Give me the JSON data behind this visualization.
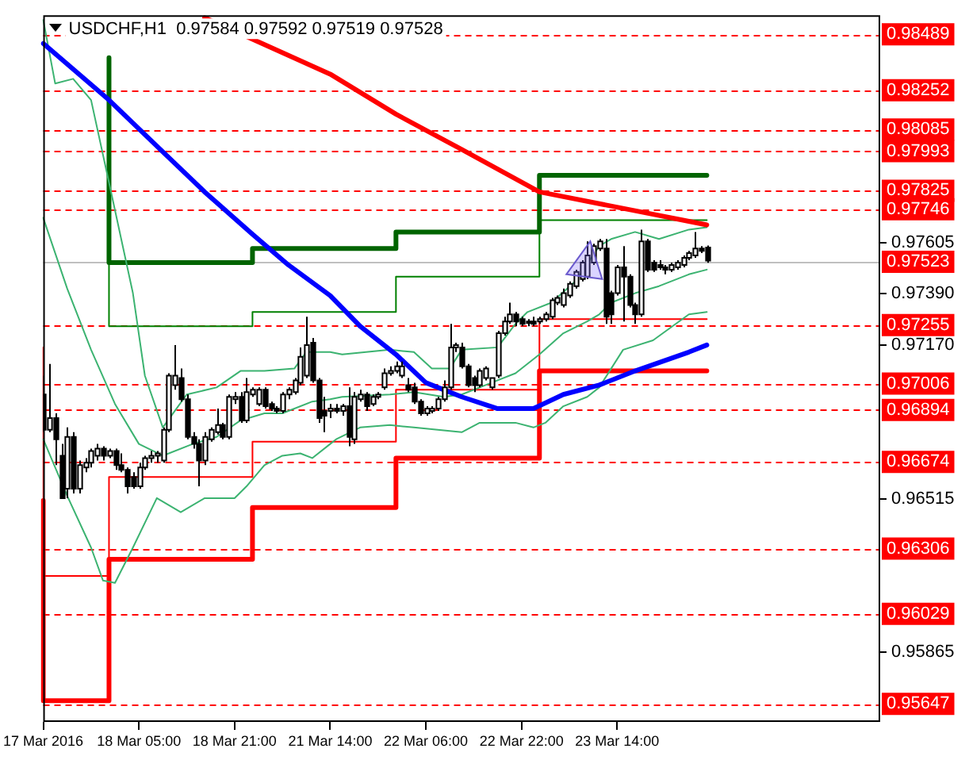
{
  "chart_data": {
    "type": "candlestick",
    "title": "USDCHF,H1  0.97584 0.97592 0.97519 0.97528",
    "categories": [
      "17 Mar 2016",
      null,
      null,
      null,
      null,
      null,
      null,
      null,
      null,
      null,
      null,
      null,
      null,
      null,
      null,
      null,
      "18 Mar 05:00",
      null,
      null,
      null,
      null,
      null,
      null,
      null,
      null,
      null,
      null,
      null,
      null,
      null,
      null,
      null,
      "18 Mar 21:00",
      null,
      null,
      null,
      null,
      null,
      null,
      null,
      null,
      null,
      null,
      null,
      null,
      null,
      null,
      null,
      "21 Mar 14:00",
      null,
      null,
      null,
      null,
      null,
      null,
      null,
      null,
      null,
      null,
      null,
      null,
      null,
      null,
      null,
      "22 Mar 06:00",
      null,
      null,
      null,
      null,
      null,
      null,
      null,
      null,
      null,
      null,
      null,
      null,
      null,
      null,
      null,
      "22 Mar 22:00",
      null,
      null,
      null,
      null,
      null,
      null,
      null,
      null,
      null,
      null,
      null,
      null,
      null,
      null,
      null,
      "23 Mar 14:00",
      null,
      null,
      null,
      null,
      null,
      null,
      null,
      null,
      null,
      null,
      null,
      null,
      null,
      null,
      null,
      null,
      null,
      null,
      null,
      null,
      null,
      null,
      null,
      null,
      null,
      null,
      null,
      null,
      null,
      null,
      null,
      null,
      null,
      null,
      null,
      null,
      null,
      null,
      null,
      null,
      null,
      null,
      null,
      null
    ],
    "ohlc": [
      [
        0.9696,
        0.9704,
        0.968,
        0.9681
      ],
      [
        0.9681,
        0.9709,
        0.968,
        0.9686
      ],
      [
        0.9686,
        0.9688,
        0.9666,
        0.9677
      ],
      [
        0.967,
        0.9675,
        0.9652,
        0.9652
      ],
      [
        0.9656,
        0.9682,
        0.9652,
        0.9678
      ],
      [
        0.9678,
        0.968,
        0.9654,
        0.9656
      ],
      [
        0.9656,
        0.9668,
        0.9654,
        0.9666
      ],
      [
        0.9665,
        0.9669,
        0.9663,
        0.9667
      ],
      [
        0.9667,
        0.9673,
        0.9665,
        0.9672
      ],
      [
        0.967,
        0.9675,
        0.9668,
        0.9673
      ],
      [
        0.9673,
        0.9674,
        0.9668,
        0.967
      ],
      [
        0.967,
        0.9673,
        0.9669,
        0.9672
      ],
      [
        0.9672,
        0.9673,
        0.9664,
        0.9666
      ],
      [
        0.9666,
        0.9671,
        0.9663,
        0.9664
      ],
      [
        0.9664,
        0.9665,
        0.9654,
        0.9657
      ],
      [
        0.9661,
        0.9663,
        0.9656,
        0.9657
      ],
      [
        0.9657,
        0.9667,
        0.9656,
        0.9665
      ],
      [
        0.9665,
        0.967,
        0.9664,
        0.9669
      ],
      [
        0.9669,
        0.9672,
        0.9667,
        0.967
      ],
      [
        0.967,
        0.9672,
        0.9667,
        0.9671
      ],
      [
        0.9668,
        0.9682,
        0.9667,
        0.9681
      ],
      [
        0.9681,
        0.9705,
        0.968,
        0.9704
      ],
      [
        0.97,
        0.9717,
        0.9698,
        0.9704
      ],
      [
        0.9703,
        0.9707,
        0.9693,
        0.9694
      ],
      [
        0.9694,
        0.9696,
        0.9677,
        0.9678
      ],
      [
        0.9678,
        0.968,
        0.9673,
        0.9675
      ],
      [
        0.9675,
        0.9677,
        0.9657,
        0.9668
      ],
      [
        0.9668,
        0.968,
        0.9666,
        0.9678
      ],
      [
        0.9677,
        0.9682,
        0.9676,
        0.9681
      ],
      [
        0.968,
        0.969,
        0.9679,
        0.9683
      ],
      [
        0.9683,
        0.9684,
        0.9677,
        0.9678
      ],
      [
        0.9678,
        0.9696,
        0.9677,
        0.9695
      ],
      [
        0.9694,
        0.9697,
        0.9692,
        0.9695
      ],
      [
        0.9695,
        0.9697,
        0.9684,
        0.9685
      ],
      [
        0.9685,
        0.9703,
        0.9684,
        0.9697
      ],
      [
        0.9696,
        0.9699,
        0.9695,
        0.9698
      ],
      [
        0.9692,
        0.9699,
        0.9691,
        0.9698
      ],
      [
        0.9698,
        0.9699,
        0.969,
        0.9691
      ],
      [
        0.9692,
        0.9693,
        0.9689,
        0.969
      ],
      [
        0.969,
        0.9691,
        0.9688,
        0.9689
      ],
      [
        0.9689,
        0.9697,
        0.9688,
        0.9696
      ],
      [
        0.9696,
        0.9699,
        0.9694,
        0.9698
      ],
      [
        0.9697,
        0.9703,
        0.9696,
        0.9702
      ],
      [
        0.9701,
        0.9716,
        0.97,
        0.9712
      ],
      [
        0.9704,
        0.9729,
        0.9703,
        0.9717
      ],
      [
        0.9718,
        0.972,
        0.9701,
        0.9702
      ],
      [
        0.9702,
        0.9703,
        0.9684,
        0.9686
      ],
      [
        0.9689,
        0.9695,
        0.968,
        0.9687
      ],
      [
        0.9689,
        0.9692,
        0.9686,
        0.969
      ],
      [
        0.969,
        0.9692,
        0.9688,
        0.9689
      ],
      [
        0.9689,
        0.9692,
        0.9687,
        0.9691
      ],
      [
        0.9691,
        0.9699,
        0.9674,
        0.9678
      ],
      [
        0.9677,
        0.9697,
        0.9675,
        0.9695
      ],
      [
        0.9694,
        0.9698,
        0.9693,
        0.9696
      ],
      [
        0.9696,
        0.9697,
        0.9689,
        0.9691
      ],
      [
        0.9692,
        0.9696,
        0.9691,
        0.9695
      ],
      [
        0.9695,
        0.9697,
        0.9694,
        0.9696
      ],
      [
        0.9699,
        0.9707,
        0.9698,
        0.9705
      ],
      [
        0.9705,
        0.9708,
        0.9704,
        0.9706
      ],
      [
        0.9706,
        0.971,
        0.9705,
        0.9708
      ],
      [
        0.9704,
        0.971,
        0.9703,
        0.9708
      ],
      [
        0.97,
        0.9703,
        0.9697,
        0.9698
      ],
      [
        0.9699,
        0.9701,
        0.9692,
        0.9693
      ],
      [
        0.9693,
        0.9694,
        0.9687,
        0.9688
      ],
      [
        0.9688,
        0.9691,
        0.9687,
        0.969
      ],
      [
        0.9689,
        0.9691,
        0.9688,
        0.969
      ],
      [
        0.969,
        0.9695,
        0.9689,
        0.9694
      ],
      [
        0.9694,
        0.9702,
        0.9693,
        0.9699
      ],
      [
        0.9699,
        0.9726,
        0.9698,
        0.9716
      ],
      [
        0.9716,
        0.9718,
        0.9714,
        0.9717
      ],
      [
        0.9716,
        0.9718,
        0.9707,
        0.9708
      ],
      [
        0.9708,
        0.9709,
        0.9699,
        0.97
      ],
      [
        0.9703,
        0.9704,
        0.9697,
        0.97
      ],
      [
        0.97,
        0.9707,
        0.9699,
        0.9706
      ],
      [
        0.9703,
        0.9708,
        0.9702,
        0.9707
      ],
      [
        0.9699,
        0.9703,
        0.9698,
        0.9703
      ],
      [
        0.9704,
        0.9723,
        0.9703,
        0.9722
      ],
      [
        0.9722,
        0.9729,
        0.9721,
        0.9727
      ],
      [
        0.9727,
        0.9735,
        0.9726,
        0.973
      ],
      [
        0.973,
        0.9731,
        0.9725,
        0.9727
      ],
      [
        0.9728,
        0.9729,
        0.9725,
        0.9726
      ],
      [
        0.9727,
        0.9728,
        0.9725,
        0.9727
      ],
      [
        0.9727,
        0.9729,
        0.9725,
        0.9726
      ],
      [
        0.9727,
        0.9729,
        0.9726,
        0.9728
      ],
      [
        0.9728,
        0.9731,
        0.9727,
        0.973
      ],
      [
        0.9729,
        0.9737,
        0.9728,
        0.9736
      ],
      [
        0.9735,
        0.9738,
        0.9734,
        0.9737
      ],
      [
        0.9734,
        0.9741,
        0.9733,
        0.9739
      ],
      [
        0.9738,
        0.9744,
        0.9737,
        0.9743
      ],
      [
        0.9742,
        0.9749,
        0.9741,
        0.9748
      ],
      [
        0.9745,
        0.9753,
        0.9744,
        0.9752
      ],
      [
        0.9746,
        0.9761,
        0.9745,
        0.9755
      ],
      [
        0.9752,
        0.976,
        0.9751,
        0.9759
      ],
      [
        0.9758,
        0.9762,
        0.9757,
        0.9761
      ],
      [
        0.9758,
        0.9762,
        0.9726,
        0.9729
      ],
      [
        0.9739,
        0.974,
        0.9726,
        0.973
      ],
      [
        0.9739,
        0.9751,
        0.9738,
        0.975
      ],
      [
        0.975,
        0.9759,
        0.9727,
        0.9746
      ],
      [
        0.9746,
        0.9747,
        0.9733,
        0.9734
      ],
      [
        0.9734,
        0.9735,
        0.9726,
        0.973
      ],
      [
        0.973,
        0.9766,
        0.9729,
        0.9761
      ],
      [
        0.9761,
        0.9762,
        0.9748,
        0.9749
      ],
      [
        0.9752,
        0.9753,
        0.9748,
        0.9749
      ],
      [
        0.9751,
        0.9753,
        0.9749,
        0.975
      ],
      [
        0.975,
        0.9751,
        0.9747,
        0.9749
      ],
      [
        0.9749,
        0.9752,
        0.9748,
        0.9751
      ],
      [
        0.975,
        0.9753,
        0.9749,
        0.9752
      ],
      [
        0.9751,
        0.9755,
        0.975,
        0.9754
      ],
      [
        0.9754,
        0.9757,
        0.9753,
        0.9756
      ],
      [
        0.9755,
        0.9765,
        0.9754,
        0.9758
      ],
      [
        0.9758,
        0.9759,
        0.9756,
        0.9757
      ],
      [
        0.97584,
        0.97592,
        0.97519,
        0.97528
      ],
      null,
      null,
      null,
      null,
      null,
      null,
      null,
      null,
      null,
      null,
      null,
      null,
      null,
      null,
      null,
      null,
      null,
      null,
      null,
      null,
      null,
      null,
      null,
      null,
      null,
      null,
      null,
      null,
      null
    ],
    "series": [
      {
        "type": "line",
        "color": "#ff0000",
        "values": [
          null,
          null,
          null,
          null,
          null,
          null,
          null,
          null,
          null,
          null,
          null,
          null,
          null,
          null,
          null,
          null,
          null,
          null,
          null,
          null,
          null,
          null,
          null,
          null,
          null,
          null,
          null,
          0.9856,
          null,
          null,
          null,
          null,
          null,
          null,
          null,
          null,
          null,
          null,
          null,
          null,
          null,
          null,
          null,
          null,
          null,
          null,
          null,
          null,
          0.9832,
          null,
          null,
          null,
          null,
          null,
          null,
          null,
          null,
          null,
          null,
          0.9815,
          null,
          null,
          null,
          null,
          null,
          null,
          null,
          null,
          null,
          null,
          0.98,
          null,
          null,
          null,
          null,
          null,
          null,
          null,
          null,
          null,
          null,
          null,
          null,
          0.9782,
          null,
          null,
          null,
          null,
          null,
          null,
          null,
          null,
          null,
          0.9777,
          null,
          null,
          null,
          null,
          null,
          0.9774,
          null,
          null,
          null,
          null,
          null,
          null,
          null,
          0.977,
          null,
          null,
          null,
          0.9768,
          null,
          null,
          null,
          null,
          null,
          null,
          null,
          null,
          null,
          null,
          null,
          null,
          null,
          null,
          null,
          null,
          null,
          null,
          null,
          null,
          null,
          null,
          null,
          null,
          null,
          null,
          null,
          null,
          null
        ]
      },
      {
        "type": "line",
        "color": "#0000ff",
        "values": [
          0.9845,
          null,
          null,
          null,
          null,
          null,
          null,
          null,
          null,
          null,
          null,
          0.9821,
          null,
          null,
          null,
          null,
          null,
          null,
          null,
          null,
          0.9799,
          null,
          null,
          null,
          null,
          null,
          null,
          0.9782,
          null,
          null,
          null,
          null,
          null,
          null,
          null,
          0.9764,
          null,
          null,
          null,
          null,
          null,
          0.9751,
          null,
          null,
          null,
          null,
          null,
          null,
          0.9738,
          null,
          null,
          null,
          null,
          0.9725,
          null,
          null,
          null,
          null,
          null,
          0.9713,
          null,
          null,
          null,
          null,
          0.9701,
          null,
          null,
          null,
          null,
          null,
          0.9695,
          null,
          null,
          null,
          null,
          null,
          0.969,
          null,
          null,
          null,
          null,
          null,
          0.969,
          null,
          null,
          null,
          null,
          0.9696,
          null,
          null,
          null,
          null,
          null,
          0.97,
          null,
          null,
          null,
          null,
          null,
          0.9706,
          null,
          null,
          null,
          null,
          null,
          null,
          null,
          null,
          0.9714,
          null,
          null,
          0.9717,
          null,
          null,
          null,
          null,
          null,
          null,
          null,
          null,
          null,
          null,
          null,
          null,
          null,
          null,
          null,
          null,
          null,
          null,
          null,
          null,
          null,
          null,
          null,
          null,
          null,
          null,
          null,
          null,
          null
        ]
      },
      {
        "type": "line",
        "color": "#3cb371",
        "values": [
          0.9855,
          null,
          0.9828,
          null,
          null,
          0.983,
          null,
          null,
          0.9821,
          null,
          null,
          0.9786,
          null,
          null,
          null,
          0.9739,
          null,
          0.9704,
          null,
          null,
          0.9682,
          null,
          null,
          null,
          0.9696,
          null,
          null,
          null,
          null,
          0.9699,
          null,
          null,
          null,
          0.9706,
          null,
          null,
          null,
          0.9706,
          null,
          null,
          null,
          null,
          0.9707,
          null,
          0.9714,
          null,
          null,
          null,
          0.9714,
          null,
          0.9713,
          null,
          null,
          null,
          null,
          null,
          null,
          null,
          0.9715,
          null,
          null,
          null,
          0.9714,
          null,
          null,
          0.9707,
          null,
          null,
          0.9707,
          null,
          0.9715,
          null,
          null,
          null,
          null,
          null,
          0.9716,
          null,
          null,
          0.9726,
          null,
          0.9731,
          null,
          null,
          null,
          0.9735,
          null,
          null,
          null,
          0.9744,
          null,
          null,
          null,
          0.9759,
          null,
          0.9762,
          null,
          null,
          null,
          0.9765,
          null,
          null,
          null,
          0.9762,
          null,
          null,
          null,
          null,
          0.9766,
          null,
          null,
          0.9767,
          null,
          null,
          null,
          null,
          null,
          null,
          null,
          null,
          null,
          null,
          null,
          null,
          null,
          null,
          null,
          null,
          null,
          null,
          null,
          null,
          null,
          null,
          null,
          null,
          null,
          null,
          null,
          null,
          null
        ]
      },
      {
        "type": "line",
        "color": "#3cb371",
        "values": [
          0.9771,
          null,
          null,
          null,
          0.9741,
          null,
          null,
          null,
          0.9715,
          null,
          null,
          null,
          0.9692,
          null,
          null,
          null,
          0.9675,
          null,
          null,
          null,
          0.967,
          null,
          null,
          null,
          null,
          0.9675,
          null,
          null,
          null,
          0.9678,
          null,
          null,
          null,
          0.9685,
          null,
          null,
          null,
          0.9688,
          null,
          null,
          0.9688,
          null,
          null,
          null,
          null,
          0.9693,
          null,
          null,
          0.9694,
          null,
          0.9695,
          null,
          null,
          null,
          null,
          null,
          null,
          null,
          0.9696,
          null,
          null,
          null,
          0.9697,
          null,
          null,
          null,
          null,
          0.9695,
          null,
          null,
          0.9696,
          null,
          null,
          null,
          null,
          0.9701,
          null,
          null,
          null,
          0.9705,
          null,
          null,
          null,
          0.9713,
          null,
          null,
          null,
          0.9722,
          null,
          null,
          null,
          0.9727,
          null,
          0.973,
          null,
          0.9735,
          null,
          null,
          null,
          0.9739,
          null,
          null,
          null,
          0.9742,
          null,
          null,
          null,
          null,
          0.9747,
          null,
          null,
          0.9749,
          null,
          null,
          null,
          null,
          null,
          null,
          null,
          null,
          null,
          null,
          null,
          null,
          null,
          null,
          null,
          null,
          null,
          null,
          null,
          null,
          null,
          null,
          null,
          null,
          null,
          null,
          null,
          null,
          null
        ]
      },
      {
        "type": "line",
        "color": "#3cb371",
        "values": [
          0.9677,
          null,
          null,
          null,
          0.9653,
          null,
          null,
          null,
          0.9631,
          null,
          0.9617,
          null,
          0.9616,
          null,
          null,
          0.9631,
          null,
          null,
          null,
          0.9652,
          null,
          null,
          null,
          0.9646,
          null,
          null,
          null,
          0.9652,
          null,
          null,
          null,
          null,
          0.9652,
          null,
          0.9657,
          null,
          null,
          0.9666,
          null,
          null,
          0.967,
          null,
          null,
          0.9671,
          null,
          0.9669,
          null,
          null,
          0.9675,
          0.9677,
          null,
          null,
          null,
          0.9682,
          null,
          null,
          null,
          null,
          0.9683,
          null,
          null,
          null,
          0.9682,
          null,
          null,
          null,
          0.9681,
          null,
          null,
          null,
          0.968,
          null,
          null,
          0.9684,
          null,
          null,
          null,
          null,
          null,
          0.9684,
          null,
          null,
          0.9682,
          null,
          0.9684,
          null,
          null,
          0.9691,
          null,
          null,
          null,
          0.9695,
          null,
          0.9699,
          null,
          null,
          null,
          0.9715,
          null,
          null,
          null,
          null,
          0.9719,
          null,
          null,
          null,
          null,
          null,
          0.973,
          null,
          null,
          0.9731,
          null,
          null,
          null,
          null,
          null,
          null,
          null,
          null,
          null,
          null,
          null,
          null,
          null,
          null,
          null,
          null,
          null,
          null,
          null,
          null,
          null,
          null,
          null,
          null,
          null,
          null,
          null,
          null,
          null
        ]
      },
      {
        "type": "step",
        "color": "#006400",
        "values": [
          null,
          null,
          null,
          null,
          null,
          null,
          null,
          null,
          null,
          null,
          null,
          0.9839,
          null,
          null,
          null,
          null,
          null,
          null,
          null,
          null,
          null,
          null,
          null,
          null,
          null,
          null,
          null,
          null,
          null,
          null,
          null,
          null,
          null,
          null,
          null,
          0.9752,
          null,
          null,
          null,
          null,
          null,
          null,
          null,
          null,
          null,
          null,
          null,
          null,
          null,
          null,
          null,
          null,
          null,
          null,
          null,
          null,
          null,
          null,
          null,
          0.9758,
          null,
          null,
          null,
          null,
          null,
          null,
          null,
          null,
          null,
          null,
          null,
          null,
          null,
          null,
          null,
          null,
          null,
          null,
          null,
          null,
          null,
          null,
          null,
          0.9765,
          null,
          null,
          null,
          null,
          null,
          null,
          null,
          null,
          null,
          null,
          null,
          null,
          null,
          null,
          null,
          null,
          null,
          null,
          null,
          null,
          null,
          null,
          null,
          0.9789,
          null,
          null,
          null,
          0.9789,
          null,
          null,
          null,
          null,
          null,
          null,
          null,
          null,
          null,
          null,
          null,
          null,
          null,
          null,
          null,
          null,
          null,
          null,
          null,
          null,
          null,
          null,
          null,
          null,
          null,
          null,
          null,
          null,
          null
        ]
      },
      {
        "type": "step",
        "color": "#008000",
        "values": [
          null,
          null,
          null,
          null,
          null,
          null,
          null,
          null,
          null,
          null,
          null,
          0.9755,
          null,
          null,
          null,
          null,
          null,
          null,
          null,
          null,
          null,
          null,
          null,
          null,
          null,
          null,
          null,
          null,
          null,
          null,
          null,
          null,
          null,
          null,
          null,
          0.9725,
          null,
          null,
          null,
          null,
          null,
          null,
          null,
          null,
          null,
          null,
          null,
          null,
          null,
          null,
          null,
          null,
          null,
          null,
          null,
          null,
          null,
          null,
          null,
          0.9731,
          null,
          null,
          null,
          null,
          null,
          null,
          null,
          null,
          null,
          null,
          null,
          null,
          null,
          null,
          null,
          null,
          null,
          null,
          null,
          null,
          null,
          null,
          null,
          0.9746,
          null,
          null,
          null,
          null,
          null,
          null,
          null,
          null,
          null,
          null,
          null,
          null,
          null,
          null,
          null,
          null,
          null,
          null,
          null,
          null,
          null,
          null,
          null,
          0.977,
          null,
          null,
          null,
          0.977,
          null,
          null,
          null,
          null,
          null,
          null,
          null,
          null,
          null,
          null,
          null,
          null,
          null,
          null,
          null,
          null,
          null,
          null,
          null,
          null,
          null,
          null,
          null,
          null,
          null,
          null,
          null,
          null,
          null
        ]
      },
      {
        "type": "step",
        "color": "#ff0000",
        "values": [
          0.9651,
          null,
          null,
          null,
          null,
          null,
          null,
          null,
          null,
          null,
          null,
          0.9566,
          null,
          null,
          null,
          null,
          null,
          null,
          null,
          null,
          null,
          null,
          null,
          null,
          null,
          null,
          null,
          null,
          null,
          null,
          null,
          null,
          null,
          null,
          null,
          0.9626,
          null,
          null,
          null,
          null,
          null,
          null,
          null,
          null,
          null,
          null,
          null,
          null,
          null,
          null,
          null,
          null,
          null,
          null,
          null,
          null,
          null,
          null,
          null,
          0.9648,
          null,
          null,
          null,
          null,
          null,
          null,
          null,
          null,
          null,
          null,
          null,
          null,
          null,
          null,
          null,
          null,
          null,
          null,
          null,
          null,
          null,
          null,
          null,
          0.9669,
          null,
          null,
          null,
          null,
          null,
          null,
          null,
          null,
          null,
          null,
          null,
          null,
          null,
          null,
          null,
          null,
          null,
          null,
          null,
          null,
          null,
          null,
          null,
          0.9706,
          null,
          null,
          null,
          0.9706,
          null,
          null,
          null,
          null,
          null,
          null,
          null,
          null,
          null,
          null,
          null,
          null,
          null,
          null,
          null,
          null,
          null,
          null,
          null,
          null,
          null,
          null,
          null,
          null,
          null,
          null,
          null,
          null,
          null
        ]
      },
      {
        "type": "step",
        "color": "#ff0000",
        "values": [
          0.9716,
          null,
          null,
          null,
          null,
          null,
          null,
          null,
          null,
          null,
          null,
          0.9619,
          null,
          null,
          null,
          null,
          null,
          null,
          null,
          null,
          null,
          null,
          null,
          null,
          null,
          null,
          null,
          null,
          null,
          null,
          null,
          null,
          null,
          null,
          null,
          0.9661,
          null,
          null,
          null,
          null,
          null,
          null,
          null,
          null,
          null,
          null,
          null,
          null,
          null,
          null,
          null,
          null,
          null,
          null,
          null,
          null,
          null,
          null,
          null,
          0.9676,
          null,
          null,
          null,
          null,
          null,
          null,
          null,
          null,
          null,
          null,
          null,
          null,
          null,
          null,
          null,
          null,
          null,
          null,
          null,
          null,
          null,
          null,
          null,
          0.9698,
          null,
          null,
          null,
          null,
          null,
          null,
          null,
          null,
          null,
          null,
          null,
          null,
          null,
          null,
          null,
          null,
          null,
          null,
          null,
          null,
          null,
          null,
          null,
          0.9728,
          null,
          null,
          null,
          0.9728,
          null,
          null,
          null,
          null,
          null,
          null,
          null,
          null,
          null,
          null,
          null,
          null,
          null,
          null,
          null,
          null,
          null,
          null,
          null,
          null,
          null,
          null,
          null,
          null,
          null,
          null,
          null,
          null,
          null
        ]
      }
    ],
    "ylim": [
      0.9557,
      0.9857
    ],
    "yticks": [
      0.97605,
      {
        "value": 0.9739,
        "label": "0.97390"
      },
      {
        "value": 0.9717,
        "label": "0.97170"
      },
      0.96515,
      0.95865
    ],
    "ref_lines": [
      {
        "axis": "y",
        "value": 0.98489,
        "label": "0.98489",
        "color": "#ff0000",
        "line_style": "dashed"
      },
      {
        "axis": "y",
        "value": 0.98252,
        "label": "0.98252",
        "color": "#ff0000",
        "line_style": "dashed"
      },
      {
        "axis": "y",
        "value": 0.98085,
        "label": "0.98085",
        "color": "#ff0000",
        "line_style": "dashed"
      },
      {
        "axis": "y",
        "value": 0.97993,
        "label": "0.97993",
        "color": "#ff0000",
        "line_style": "dashed"
      },
      {
        "axis": "y",
        "value": 0.97825,
        "label": "0.97825",
        "color": "#ff0000",
        "line_style": "dashed"
      },
      {
        "axis": "y",
        "value": 0.97746,
        "label": "0.97746",
        "color": "#ff0000",
        "line_style": "dashed"
      },
      {
        "axis": "y",
        "value": 0.97523,
        "label": "0.97523",
        "color": "#c0c0c0",
        "line_style": "solid"
      },
      {
        "axis": "y",
        "value": 0.97255,
        "label": "0.97255",
        "color": "#ff0000",
        "line_style": "dashed"
      },
      {
        "axis": "y",
        "value": 0.97006,
        "label": "0.97006",
        "color": "#ff0000",
        "line_style": "dashed"
      },
      {
        "axis": "y",
        "value": 0.96894,
        "label": "0.96894",
        "color": "#ff0000",
        "line_style": "dashed"
      },
      {
        "axis": "y",
        "value": 0.96674,
        "label": "0.96674",
        "color": "#ff0000",
        "line_style": "dashed"
      },
      {
        "axis": "y",
        "value": 0.96306,
        "label": "0.96306",
        "color": "#ff0000",
        "line_style": "dashed"
      },
      {
        "axis": "y",
        "value": 0.96029,
        "label": "0.96029",
        "color": "#ff0000",
        "line_style": "dashed"
      },
      {
        "axis": "y",
        "value": 0.95647,
        "label": "0.95647",
        "color": "#ff0000",
        "line_style": "dashed"
      }
    ]
  }
}
